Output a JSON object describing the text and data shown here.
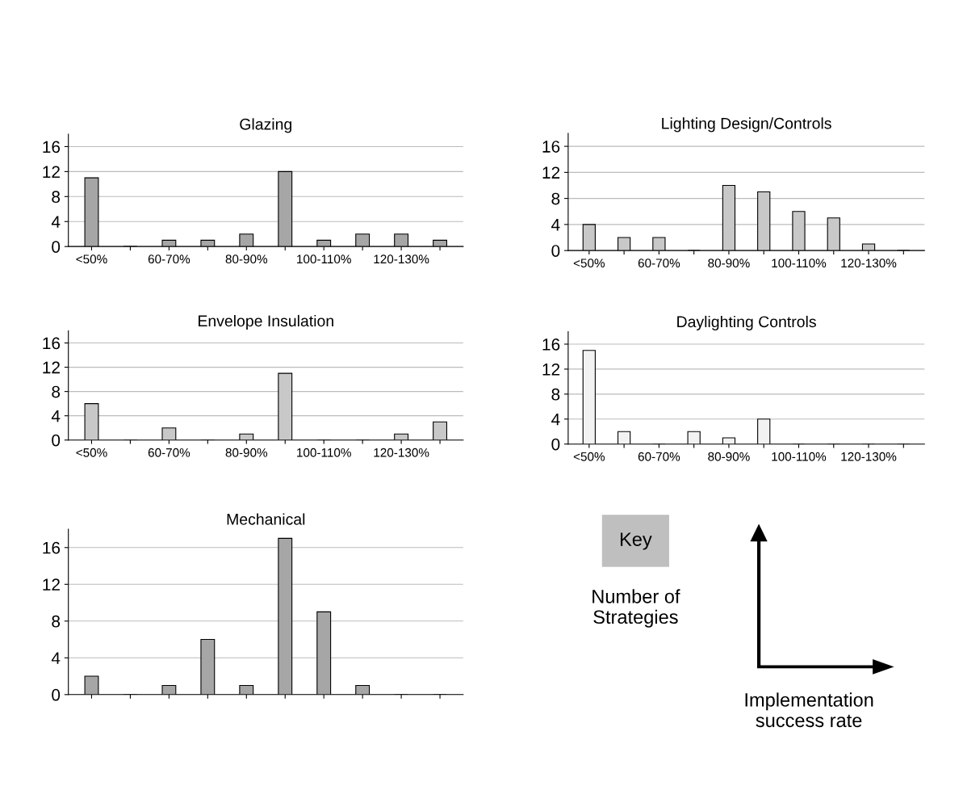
{
  "chart_data": [
    {
      "type": "bar",
      "title": "Glazing",
      "categories": [
        "<50%",
        null,
        "60-70%",
        null,
        "80-90%",
        null,
        "100-110%",
        null,
        "120-130%",
        null
      ],
      "values": [
        11,
        0,
        1,
        1,
        2,
        12,
        1,
        2,
        2,
        1
      ],
      "color": "#a6a6a6",
      "ylim": [
        0,
        18
      ],
      "yticks": [
        0,
        4,
        8,
        12,
        16
      ],
      "grid": "y"
    },
    {
      "type": "bar",
      "title": "Lighting Design/Controls",
      "categories": [
        "<50%",
        null,
        "60-70%",
        null,
        "80-90%",
        null,
        "100-110%",
        null,
        "120-130%",
        null
      ],
      "values": [
        4,
        2,
        2,
        0,
        10,
        9,
        6,
        5,
        1,
        0
      ],
      "color": "#c8c8c8",
      "ylim": [
        0,
        18
      ],
      "yticks": [
        0,
        4,
        8,
        12,
        16
      ],
      "grid": "y"
    },
    {
      "type": "bar",
      "title": "Envelope Insulation",
      "categories": [
        "<50%",
        null,
        "60-70%",
        null,
        "80-90%",
        null,
        "100-110%",
        null,
        "120-130%",
        null
      ],
      "values": [
        6,
        0,
        2,
        0,
        1,
        11,
        0,
        0,
        1,
        3
      ],
      "color": "#c8c8c8",
      "ylim": [
        0,
        18
      ],
      "yticks": [
        0,
        4,
        8,
        12,
        16
      ],
      "grid": "y"
    },
    {
      "type": "bar",
      "title": "Daylighting Controls",
      "categories": [
        "<50%",
        null,
        "60-70%",
        null,
        "80-90%",
        null,
        "100-110%",
        null,
        "120-130%",
        null
      ],
      "values": [
        15,
        2,
        0,
        2,
        1,
        4,
        0,
        0,
        0,
        0
      ],
      "color": "#f2f2f2",
      "ylim": [
        0,
        18
      ],
      "yticks": [
        0,
        4,
        8,
        12,
        16
      ],
      "grid": "y"
    },
    {
      "type": "bar",
      "title": "Mechanical",
      "categories": [
        null,
        null,
        null,
        null,
        null,
        null,
        null,
        null,
        null,
        null
      ],
      "values": [
        2,
        0,
        1,
        6,
        1,
        17,
        9,
        1,
        0,
        0
      ],
      "color": "#a6a6a6",
      "ylim": [
        0,
        18
      ],
      "yticks": [
        0,
        4,
        8,
        12,
        16
      ],
      "grid": "y"
    },
    {
      "type": "other",
      "annotations": [
        "Key",
        "Number of\nStrategies",
        "Implementation\nsuccess rate"
      ]
    }
  ]
}
